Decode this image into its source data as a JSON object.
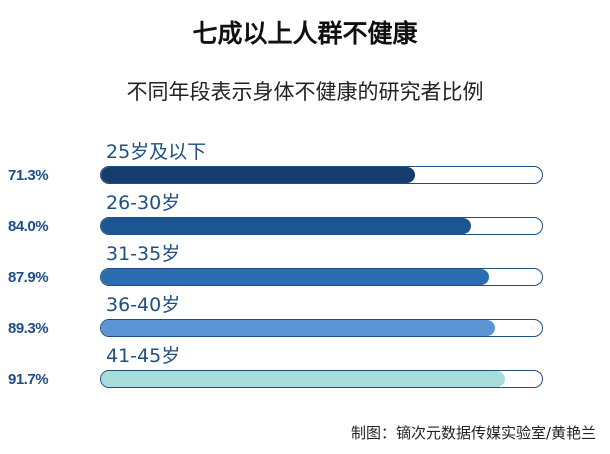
{
  "chart_data": {
    "type": "bar",
    "orientation": "horizontal",
    "title": "七成以上人群不健康",
    "subtitle": "不同年段表示身体不健康的研究者比例",
    "categories": [
      "25岁及以下",
      "26-30岁",
      "31-35岁",
      "36-40岁",
      "41-45岁"
    ],
    "values": [
      71.3,
      84.0,
      87.9,
      89.3,
      91.7
    ],
    "value_labels": [
      "71.3%",
      "84.0%",
      "87.9%",
      "89.3%",
      "91.7%"
    ],
    "xlim": [
      0,
      100
    ],
    "bar_colors": [
      "#173d6e",
      "#1c5593",
      "#2a6db0",
      "#5b95d3",
      "#a6dcdb"
    ],
    "grid": false,
    "credit": "制图：镝次元数据传媒实验室/黄艳兰"
  }
}
